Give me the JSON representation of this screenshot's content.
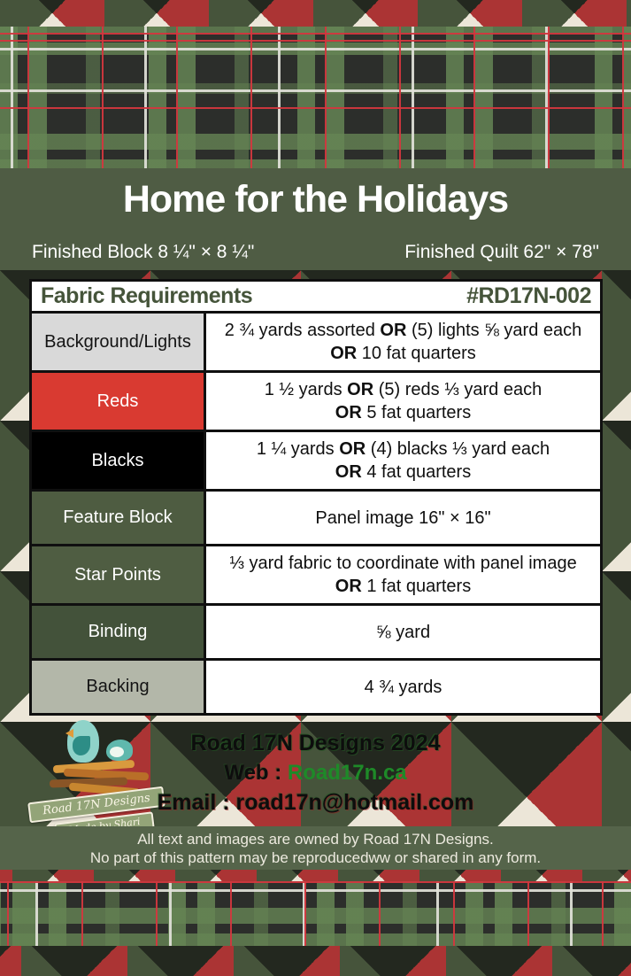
{
  "banner": {
    "title": "Home for the Holidays",
    "finished_block": "Finished Block 8 ¼\" × 8 ¼\"",
    "finished_quilt": "Finished Quilt 62\" × 78\""
  },
  "table": {
    "title": "Fabric Requirements",
    "pattern_number": "#RD17N-002",
    "rows": [
      {
        "label": "Background/Lights",
        "label_bg": "#d9d9d9",
        "label_color": "#141414",
        "lines": [
          [
            {
              "t": "2 ¾ yards assorted "
            },
            {
              "t": "OR",
              "b": true
            },
            {
              "t": " (5) lights ⅝ yard each"
            }
          ],
          [
            {
              "t": "OR",
              "b": true
            },
            {
              "t": " 10 fat quarters"
            }
          ]
        ]
      },
      {
        "label": "Reds",
        "label_bg": "#d93a31",
        "label_color": "#ffffff",
        "lines": [
          [
            {
              "t": "1 ½ yards "
            },
            {
              "t": "OR",
              "b": true
            },
            {
              "t": " (5) reds ⅓ yard each"
            }
          ],
          [
            {
              "t": "OR",
              "b": true
            },
            {
              "t": " 5 fat quarters"
            }
          ]
        ]
      },
      {
        "label": "Blacks",
        "label_bg": "#000000",
        "label_color": "#ffffff",
        "lines": [
          [
            {
              "t": "1 ¼ yards "
            },
            {
              "t": "OR",
              "b": true
            },
            {
              "t": " (4) blacks ⅓ yard each"
            }
          ],
          [
            {
              "t": "OR",
              "b": true
            },
            {
              "t": " 4 fat quarters"
            }
          ]
        ]
      },
      {
        "label": "Feature Block",
        "label_bg": "#4e5c41",
        "label_color": "#ffffff",
        "lines": [
          [
            {
              "t": "Panel image 16\" × 16\""
            }
          ]
        ]
      },
      {
        "label": "Star Points",
        "label_bg": "#4f5d42",
        "label_color": "#ffffff",
        "lines": [
          [
            {
              "t": "⅓ yard fabric to coordinate with panel image"
            }
          ],
          [
            {
              "t": "OR",
              "b": true
            },
            {
              "t": " 1 fat quarters"
            }
          ]
        ]
      },
      {
        "label": "Binding",
        "label_bg": "#43523a",
        "label_color": "#ffffff",
        "lines": [
          [
            {
              "t": "⅝ yard"
            }
          ]
        ]
      },
      {
        "label": "Backing",
        "label_bg": "#b3b7a9",
        "label_color": "#141414",
        "lines": [
          [
            {
              "t": "4 ¾ yards"
            }
          ]
        ]
      }
    ]
  },
  "credits": {
    "line1": "Road 17N Designs 2024",
    "web_label": "Web : ",
    "web_value": "Road17n.ca",
    "email_label": "Email :  ",
    "email_value": "road17n@hotmail.com"
  },
  "logo": {
    "ribbon1": "Road 17N Designs",
    "ribbon2": "Made by Shari"
  },
  "disclaimer": {
    "line1": "All text and images are owned by Road 17N Designs.",
    "line2": "No part of this pattern may be reproducedww or shared in any form."
  },
  "colors": {
    "banner_green": "#4f5c44",
    "disclaimer_green": "#55644a",
    "table_header_text": "#45543a",
    "reds_row": "#d93a31",
    "link_green": "#1e8a28",
    "plaid_base": "#2c2e2b"
  }
}
